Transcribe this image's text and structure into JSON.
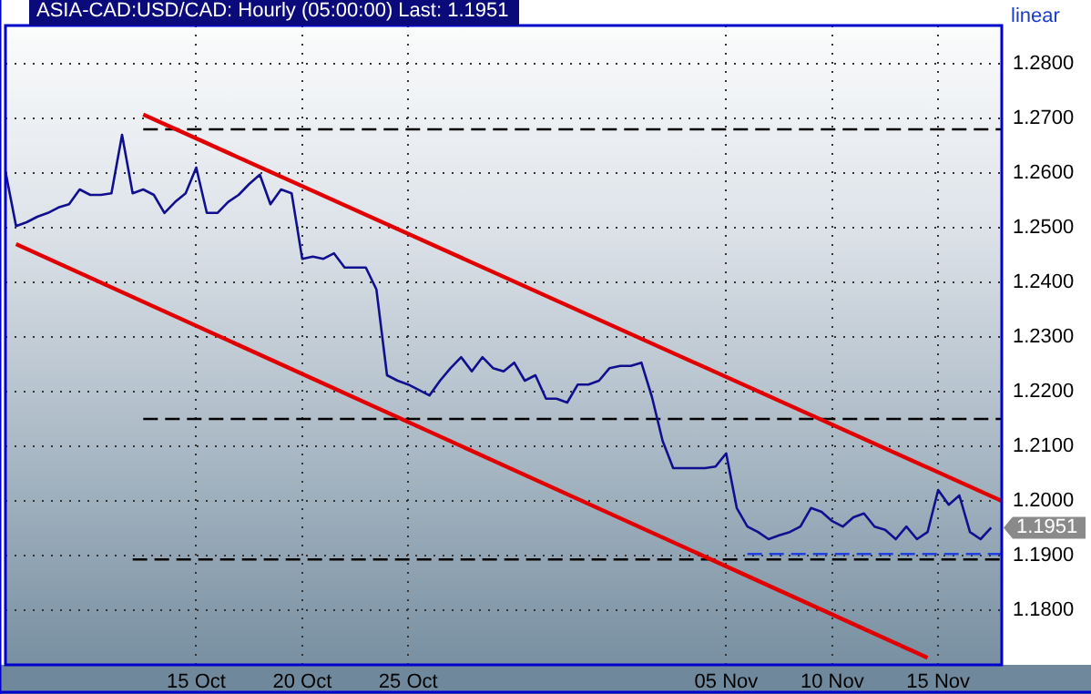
{
  "chart_data": {
    "type": "line",
    "title": "ASIA-CAD:USD/CAD: Hourly (05:00:00) Last: 1.1951",
    "categories": [
      null,
      null,
      null,
      null,
      null,
      null,
      null,
      null,
      null,
      null,
      null,
      null,
      null,
      null,
      null,
      null,
      null,
      null,
      "15 Oct",
      null,
      null,
      null,
      null,
      null,
      null,
      null,
      null,
      null,
      "20 Oct",
      null,
      null,
      null,
      null,
      null,
      null,
      null,
      null,
      null,
      "25 Oct",
      null,
      null,
      null,
      null,
      null,
      null,
      null,
      null,
      null,
      null,
      null,
      null,
      null,
      null,
      null,
      null,
      null,
      null,
      null,
      null,
      null,
      null,
      null,
      null,
      null,
      null,
      null,
      null,
      null,
      "05 Nov",
      null,
      null,
      null,
      null,
      null,
      null,
      null,
      null,
      null,
      "10 Nov",
      null,
      null,
      null,
      null,
      null,
      null,
      null,
      null,
      null,
      "15 Nov",
      null,
      null,
      null,
      null,
      null,
      null
    ],
    "series": [
      {
        "color": "#10108f",
        "line_style": "solid",
        "values": [
          1.2603,
          1.2503,
          1.251,
          1.252,
          1.2527,
          1.2537,
          1.2543,
          1.257,
          1.256,
          1.256,
          1.2563,
          1.267,
          1.2563,
          1.257,
          1.256,
          1.2527,
          1.2547,
          1.2563,
          1.261,
          1.2527,
          1.2527,
          1.2547,
          1.256,
          1.258,
          1.2597,
          1.2543,
          1.257,
          1.2563,
          1.2443,
          1.2447,
          1.2443,
          1.2453,
          1.2427,
          1.2427,
          1.2427,
          1.2387,
          1.223,
          1.222,
          1.2213,
          1.2203,
          1.2193,
          1.222,
          1.2243,
          1.2263,
          1.2237,
          1.2263,
          1.2243,
          1.2237,
          1.2253,
          1.222,
          1.223,
          1.2187,
          1.2187,
          1.218,
          1.2213,
          1.2213,
          1.222,
          1.2243,
          1.2247,
          1.2247,
          1.2253,
          1.219,
          1.211,
          1.206,
          1.206,
          1.206,
          1.206,
          1.2063,
          1.2087,
          1.1987,
          1.1953,
          1.1943,
          1.193,
          1.1937,
          1.1943,
          1.1953,
          1.1987,
          1.198,
          1.1963,
          1.1953,
          1.197,
          1.1977,
          1.1953,
          1.1947,
          1.193,
          1.1953,
          1.193,
          1.1943,
          1.202,
          1.1993,
          1.201,
          1.1943,
          1.193,
          1.1951,
          null
        ]
      },
      {
        "color": "#e00000",
        "line_style": "solid",
        "values": [
          null,
          null,
          null,
          null,
          null,
          null,
          null,
          null,
          null,
          null,
          null,
          null,
          null,
          1.2707,
          null,
          null,
          null,
          null,
          null,
          null,
          null,
          null,
          null,
          null,
          null,
          null,
          null,
          null,
          null,
          null,
          null,
          null,
          null,
          null,
          null,
          null,
          null,
          null,
          null,
          null,
          null,
          null,
          null,
          null,
          null,
          null,
          null,
          null,
          null,
          null,
          null,
          null,
          null,
          null,
          null,
          null,
          null,
          null,
          null,
          null,
          null,
          null,
          null,
          null,
          null,
          null,
          null,
          null,
          null,
          null,
          null,
          null,
          null,
          null,
          null,
          null,
          null,
          null,
          null,
          null,
          null,
          null,
          null,
          null,
          null,
          null,
          null,
          null,
          null,
          null,
          null,
          null,
          null,
          null,
          1.2
        ]
      },
      {
        "color": "#e00000",
        "line_style": "solid",
        "values": [
          null,
          1.247,
          null,
          null,
          null,
          null,
          null,
          null,
          null,
          null,
          null,
          null,
          null,
          null,
          null,
          null,
          null,
          null,
          null,
          null,
          null,
          null,
          null,
          null,
          null,
          null,
          null,
          null,
          null,
          null,
          null,
          null,
          null,
          null,
          null,
          null,
          null,
          null,
          null,
          null,
          null,
          null,
          null,
          null,
          null,
          null,
          null,
          null,
          null,
          null,
          null,
          null,
          null,
          null,
          null,
          null,
          null,
          null,
          null,
          null,
          null,
          null,
          null,
          null,
          null,
          null,
          null,
          null,
          null,
          null,
          null,
          null,
          null,
          null,
          null,
          null,
          null,
          null,
          null,
          null,
          null,
          null,
          null,
          null,
          null,
          null,
          null,
          1.1713,
          null,
          null,
          null,
          null,
          null,
          null,
          null
        ]
      },
      {
        "color": "#000000",
        "line_style": "dashed",
        "values": [
          null,
          null,
          null,
          null,
          null,
          null,
          null,
          null,
          null,
          null,
          null,
          null,
          null,
          1.268,
          null,
          null,
          null,
          null,
          null,
          null,
          null,
          null,
          null,
          null,
          null,
          null,
          null,
          null,
          null,
          null,
          null,
          null,
          null,
          null,
          null,
          null,
          null,
          null,
          null,
          null,
          null,
          null,
          null,
          null,
          null,
          null,
          null,
          null,
          null,
          null,
          null,
          null,
          null,
          null,
          null,
          null,
          null,
          null,
          null,
          null,
          null,
          null,
          null,
          null,
          null,
          null,
          null,
          null,
          null,
          null,
          null,
          null,
          null,
          null,
          null,
          null,
          null,
          null,
          null,
          null,
          null,
          null,
          null,
          null,
          null,
          null,
          null,
          null,
          null,
          null,
          null,
          null,
          null,
          null,
          1.268
        ]
      },
      {
        "color": "#000000",
        "line_style": "dashed",
        "values": [
          null,
          null,
          null,
          null,
          null,
          null,
          null,
          null,
          null,
          null,
          null,
          null,
          null,
          1.215,
          null,
          null,
          null,
          null,
          null,
          null,
          null,
          null,
          null,
          null,
          null,
          null,
          null,
          null,
          null,
          null,
          null,
          null,
          null,
          null,
          null,
          null,
          null,
          null,
          null,
          null,
          null,
          null,
          null,
          null,
          null,
          null,
          null,
          null,
          null,
          null,
          null,
          null,
          null,
          null,
          null,
          null,
          null,
          null,
          null,
          null,
          null,
          null,
          null,
          null,
          null,
          null,
          null,
          null,
          null,
          null,
          null,
          null,
          null,
          null,
          null,
          null,
          null,
          null,
          null,
          null,
          null,
          null,
          null,
          null,
          null,
          null,
          null,
          null,
          null,
          null,
          null,
          null,
          null,
          null,
          1.215
        ]
      },
      {
        "color": "#000000",
        "line_style": "dashed",
        "values": [
          null,
          null,
          null,
          null,
          null,
          null,
          null,
          null,
          null,
          null,
          null,
          null,
          1.1893,
          null,
          null,
          null,
          null,
          null,
          null,
          null,
          null,
          null,
          null,
          null,
          null,
          null,
          null,
          null,
          null,
          null,
          null,
          null,
          null,
          null,
          null,
          null,
          null,
          null,
          null,
          null,
          null,
          null,
          null,
          null,
          null,
          null,
          null,
          null,
          null,
          null,
          null,
          null,
          null,
          null,
          null,
          null,
          null,
          null,
          null,
          null,
          null,
          null,
          null,
          null,
          null,
          null,
          null,
          null,
          null,
          null,
          null,
          null,
          null,
          null,
          null,
          null,
          null,
          null,
          null,
          null,
          null,
          null,
          null,
          null,
          null,
          null,
          null,
          null,
          null,
          null,
          null,
          null,
          null,
          null,
          1.1893
        ]
      },
      {
        "color": "#2040e0",
        "line_style": "dashed",
        "values": [
          null,
          null,
          null,
          null,
          null,
          null,
          null,
          null,
          null,
          null,
          null,
          null,
          null,
          null,
          null,
          null,
          null,
          null,
          null,
          null,
          null,
          null,
          null,
          null,
          null,
          null,
          null,
          null,
          null,
          null,
          null,
          null,
          null,
          null,
          null,
          null,
          null,
          null,
          null,
          null,
          null,
          null,
          null,
          null,
          null,
          null,
          null,
          null,
          null,
          null,
          null,
          null,
          null,
          null,
          null,
          null,
          null,
          null,
          null,
          null,
          null,
          null,
          null,
          null,
          null,
          null,
          null,
          null,
          null,
          null,
          1.1903,
          null,
          null,
          null,
          null,
          null,
          null,
          null,
          null,
          null,
          null,
          null,
          null,
          null,
          null,
          null,
          null,
          null,
          null,
          null,
          null,
          null,
          null,
          null,
          1.1903
        ]
      }
    ],
    "ylim": [
      1.17,
      1.287
    ],
    "yticks": [
      {
        "value": 1.18,
        "label": "1.1800"
      },
      {
        "value": 1.19,
        "label": "1.1900"
      },
      {
        "value": 1.2,
        "label": "1.2000"
      },
      {
        "value": 1.21,
        "label": "1.2100"
      },
      {
        "value": 1.22,
        "label": "1.2200"
      },
      {
        "value": 1.23,
        "label": "1.2300"
      },
      {
        "value": 1.24,
        "label": "1.2400"
      },
      {
        "value": 1.25,
        "label": "1.2500"
      },
      {
        "value": 1.26,
        "label": "1.2600"
      },
      {
        "value": 1.27,
        "label": "1.2700"
      },
      {
        "value": 1.28,
        "label": "1.2800"
      }
    ],
    "grid": true,
    "legend": false,
    "marker": "none",
    "annotations": [
      "linear",
      "1.1951"
    ]
  }
}
